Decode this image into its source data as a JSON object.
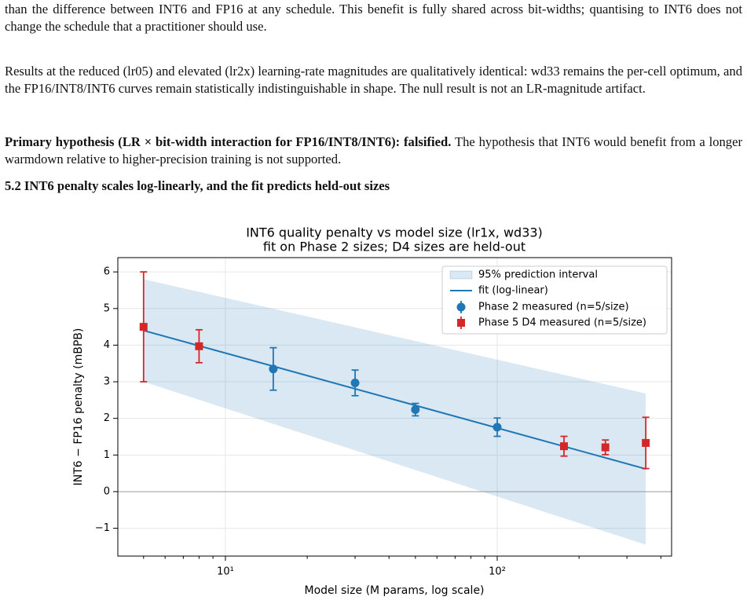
{
  "paragraphs": [
    {
      "text": "than the difference between INT6 and FP16 at any schedule. This benefit is fully shared across bit-widths; quantising to INT6 does not change the schedule that a practitioner should use."
    },
    {
      "text": "Results at the reduced (lr05) and elevated (lr2x) learning-rate magnitudes are qualitatively identical: wd33 remains the per-cell optimum, and the FP16/INT8/INT6 curves remain statistically indistinguishable in shape. The null result is not an LR-magnitude artifact."
    },
    {
      "bold": "Primary hypothesis (LR × bit-width interaction for FP16/INT8/INT6): falsified.",
      "text": "The hypothesis that INT6 would benefit from a longer warmdown relative to higher-precision training is not supported."
    }
  ],
  "section_heading": "5.2 INT6 penalty scales log-linearly, and the fit predicts held-out sizes",
  "chart_data": {
    "type": "errorbar",
    "title": "INT6 quality penalty vs model size (lr1x, wd33)",
    "subtitle": "fit on Phase 2 sizes; D4 sizes are held-out",
    "x_label": "Model size (M params, log scale)",
    "y_label": "INT6 − FP16 penalty (mBPB)",
    "x_log": true,
    "grid": true,
    "legend": "upper right",
    "xlim": [
      4.02,
      438
    ],
    "ylim": [
      -1.76,
      6.39
    ],
    "xticks": [
      {
        "value": 10,
        "label": "10¹"
      },
      {
        "value": 100,
        "label": "10²"
      }
    ],
    "xminor_ticks": [
      5,
      6,
      7,
      8,
      9,
      20,
      30,
      40,
      50,
      60,
      70,
      80,
      90,
      200,
      300,
      400
    ],
    "yticks": [
      {
        "value": -1,
        "label": "−1"
      },
      0,
      1,
      2,
      3,
      4,
      5,
      6
    ],
    "reference_line": 0,
    "band": {
      "name": "95% prediction interval",
      "color": "#1f77b4",
      "x": [
        5,
        352
      ],
      "upper": [
        5.8,
        2.68
      ],
      "lower": [
        3.0,
        -1.45
      ]
    },
    "fit": {
      "name": "fit (log-linear)",
      "color": "#1f77b4",
      "x": [
        5,
        352
      ],
      "values": [
        4.4,
        0.62
      ]
    },
    "series": [
      {
        "name": "Phase 2 measured (n=5/size)",
        "color": "#1f77b4",
        "marker": "circle",
        "x": [
          15,
          30,
          50,
          100
        ],
        "values": [
          3.35,
          2.97,
          2.24,
          1.76
        ],
        "errors": [
          0.58,
          0.35,
          0.17,
          0.25
        ]
      },
      {
        "name": "Phase 5 D4 measured (n=5/size)",
        "color": "#d62728",
        "marker": "square",
        "x": [
          5,
          8,
          176,
          250,
          352
        ],
        "values": [
          4.5,
          3.97,
          1.24,
          1.21,
          1.33
        ],
        "errors": [
          1.5,
          0.45,
          0.27,
          0.2,
          0.7
        ]
      }
    ]
  }
}
